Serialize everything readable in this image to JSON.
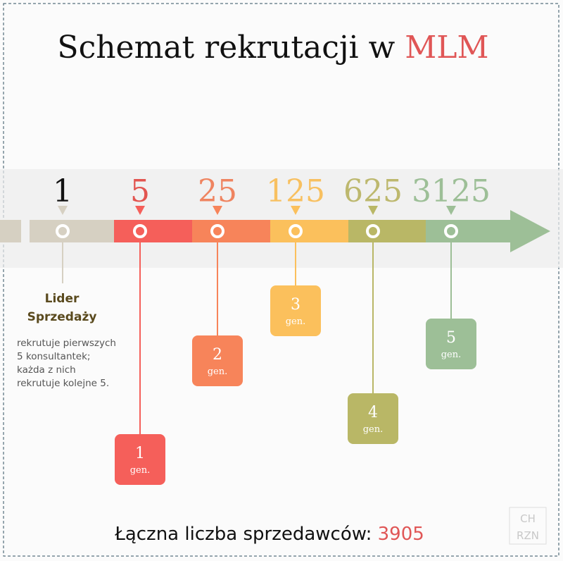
{
  "title": {
    "text": "Schemat rekrutacji w",
    "highlight": "MLM",
    "highlight_color": "#e05656"
  },
  "stages": [
    {
      "count": 1,
      "color": "#d6d0c2",
      "text_color": "#111111"
    },
    {
      "count": 5,
      "color": "#f55f5a",
      "text_color": "#e25550"
    },
    {
      "count": 25,
      "color": "#f7845a",
      "text_color": "#ef8460"
    },
    {
      "count": 125,
      "color": "#fbc05c",
      "text_color": "#f8c060"
    },
    {
      "count": 625,
      "color": "#b9b766",
      "text_color": "#bdb86e"
    },
    {
      "count": 3125,
      "color": "#9dbf97",
      "text_color": "#9dbf97"
    }
  ],
  "leader": {
    "label": [
      "Lider",
      "Sprzedaży"
    ],
    "description": [
      "rekrutuje pierwszych",
      "5 konsultantek;",
      "każda z nich",
      "rekrutuje kolejne 5."
    ]
  },
  "generations": [
    {
      "number": 1,
      "label": "gen."
    },
    {
      "number": 2,
      "label": "gen."
    },
    {
      "number": 3,
      "label": "gen."
    },
    {
      "number": 4,
      "label": "gen."
    },
    {
      "number": 5,
      "label": "gen."
    }
  ],
  "total": {
    "label": "Łączna liczba sprzedawców:",
    "value": 3905
  },
  "watermark": [
    "CH",
    "RZN"
  ]
}
